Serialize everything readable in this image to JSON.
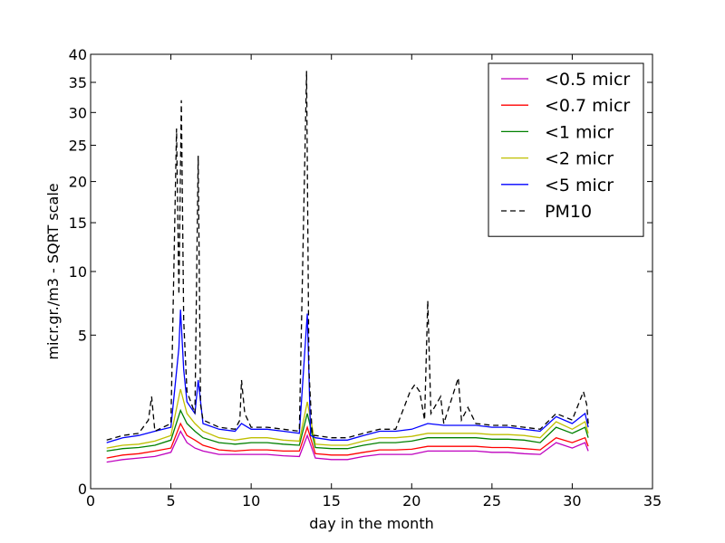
{
  "chart_data": {
    "type": "line",
    "xlabel": "day in the month",
    "ylabel": "micr.gr./m3 - SQRT scale",
    "scale_y": "sqrt",
    "xlim": [
      0,
      35
    ],
    "ylim": [
      0,
      40
    ],
    "x_ticks": [
      0,
      5,
      10,
      15,
      20,
      25,
      30,
      35
    ],
    "y_ticks": [
      0,
      5,
      10,
      15,
      20,
      25,
      30,
      35,
      40
    ],
    "legend_position": "top-right",
    "series": [
      {
        "name": "<0.5 micr",
        "color": "#bf00bf",
        "dash": false,
        "points": [
          [
            1,
            0.15
          ],
          [
            2,
            0.18
          ],
          [
            3,
            0.2
          ],
          [
            4,
            0.22
          ],
          [
            5,
            0.28
          ],
          [
            5.6,
            0.7
          ],
          [
            6,
            0.45
          ],
          [
            6.5,
            0.35
          ],
          [
            7,
            0.3
          ],
          [
            8,
            0.25
          ],
          [
            9,
            0.25
          ],
          [
            10,
            0.25
          ],
          [
            11,
            0.25
          ],
          [
            12,
            0.23
          ],
          [
            13,
            0.22
          ],
          [
            13.5,
            0.6
          ],
          [
            14,
            0.2
          ],
          [
            15,
            0.18
          ],
          [
            16,
            0.18
          ],
          [
            17,
            0.22
          ],
          [
            18,
            0.25
          ],
          [
            19,
            0.25
          ],
          [
            20,
            0.25
          ],
          [
            21,
            0.3
          ],
          [
            22,
            0.3
          ],
          [
            23,
            0.3
          ],
          [
            24,
            0.3
          ],
          [
            25,
            0.28
          ],
          [
            26,
            0.28
          ],
          [
            27,
            0.26
          ],
          [
            28,
            0.25
          ],
          [
            29,
            0.45
          ],
          [
            30,
            0.35
          ],
          [
            30.8,
            0.45
          ],
          [
            31,
            0.3
          ]
        ]
      },
      {
        "name": "<0.7 micr",
        "color": "#ff0000",
        "dash": false,
        "points": [
          [
            1,
            0.2
          ],
          [
            2,
            0.24
          ],
          [
            3,
            0.26
          ],
          [
            4,
            0.3
          ],
          [
            5,
            0.35
          ],
          [
            5.6,
            0.9
          ],
          [
            6,
            0.6
          ],
          [
            6.5,
            0.5
          ],
          [
            7,
            0.4
          ],
          [
            8,
            0.32
          ],
          [
            9,
            0.3
          ],
          [
            10,
            0.32
          ],
          [
            11,
            0.32
          ],
          [
            12,
            0.3
          ],
          [
            13,
            0.3
          ],
          [
            13.5,
            0.8
          ],
          [
            14,
            0.26
          ],
          [
            15,
            0.24
          ],
          [
            16,
            0.24
          ],
          [
            17,
            0.28
          ],
          [
            18,
            0.32
          ],
          [
            19,
            0.32
          ],
          [
            20,
            0.33
          ],
          [
            21,
            0.38
          ],
          [
            22,
            0.38
          ],
          [
            23,
            0.38
          ],
          [
            24,
            0.38
          ],
          [
            25,
            0.36
          ],
          [
            26,
            0.36
          ],
          [
            27,
            0.34
          ],
          [
            28,
            0.32
          ],
          [
            29,
            0.55
          ],
          [
            30,
            0.45
          ],
          [
            30.8,
            0.55
          ],
          [
            31,
            0.38
          ]
        ]
      },
      {
        "name": "<1 micr",
        "color": "#008000",
        "dash": false,
        "points": [
          [
            1,
            0.3
          ],
          [
            2,
            0.34
          ],
          [
            3,
            0.36
          ],
          [
            4,
            0.4
          ],
          [
            5,
            0.5
          ],
          [
            5.6,
            1.3
          ],
          [
            6,
            0.9
          ],
          [
            6.5,
            0.7
          ],
          [
            7,
            0.55
          ],
          [
            8,
            0.45
          ],
          [
            9,
            0.42
          ],
          [
            10,
            0.45
          ],
          [
            11,
            0.45
          ],
          [
            12,
            0.42
          ],
          [
            13,
            0.4
          ],
          [
            13.5,
            1.2
          ],
          [
            14,
            0.36
          ],
          [
            15,
            0.34
          ],
          [
            16,
            0.34
          ],
          [
            17,
            0.4
          ],
          [
            18,
            0.45
          ],
          [
            19,
            0.45
          ],
          [
            20,
            0.48
          ],
          [
            21,
            0.55
          ],
          [
            22,
            0.55
          ],
          [
            23,
            0.55
          ],
          [
            24,
            0.55
          ],
          [
            25,
            0.52
          ],
          [
            26,
            0.52
          ],
          [
            27,
            0.5
          ],
          [
            28,
            0.45
          ],
          [
            29,
            0.8
          ],
          [
            30,
            0.65
          ],
          [
            30.8,
            0.8
          ],
          [
            31,
            0.55
          ]
        ]
      },
      {
        "name": "<2 micr",
        "color": "#bfbf00",
        "dash": false,
        "points": [
          [
            1,
            0.35
          ],
          [
            2,
            0.4
          ],
          [
            3,
            0.42
          ],
          [
            4,
            0.48
          ],
          [
            5,
            0.6
          ],
          [
            5.6,
            2.1
          ],
          [
            6,
            1.2
          ],
          [
            6.5,
            0.9
          ],
          [
            7,
            0.7
          ],
          [
            8,
            0.55
          ],
          [
            9,
            0.5
          ],
          [
            10,
            0.55
          ],
          [
            11,
            0.55
          ],
          [
            12,
            0.5
          ],
          [
            13,
            0.48
          ],
          [
            13.5,
            1.6
          ],
          [
            14,
            0.42
          ],
          [
            15,
            0.4
          ],
          [
            16,
            0.4
          ],
          [
            17,
            0.48
          ],
          [
            18,
            0.55
          ],
          [
            19,
            0.55
          ],
          [
            20,
            0.58
          ],
          [
            21,
            0.65
          ],
          [
            22,
            0.65
          ],
          [
            23,
            0.65
          ],
          [
            24,
            0.65
          ],
          [
            25,
            0.62
          ],
          [
            26,
            0.62
          ],
          [
            27,
            0.6
          ],
          [
            28,
            0.55
          ],
          [
            29,
            0.95
          ],
          [
            30,
            0.75
          ],
          [
            30.8,
            0.95
          ],
          [
            31,
            0.65
          ]
        ]
      },
      {
        "name": "<5 micr",
        "color": "#0000ff",
        "dash": false,
        "points": [
          [
            1,
            0.45
          ],
          [
            2,
            0.55
          ],
          [
            3,
            0.6
          ],
          [
            4,
            0.7
          ],
          [
            5,
            0.8
          ],
          [
            5.5,
            4.2
          ],
          [
            5.6,
            6.8
          ],
          [
            5.8,
            3
          ],
          [
            6,
            1.6
          ],
          [
            6.5,
            1.2
          ],
          [
            6.7,
            2.5
          ],
          [
            7,
            0.9
          ],
          [
            8,
            0.75
          ],
          [
            9,
            0.7
          ],
          [
            9.4,
            0.9
          ],
          [
            10,
            0.75
          ],
          [
            11,
            0.75
          ],
          [
            12,
            0.7
          ],
          [
            13,
            0.65
          ],
          [
            13.5,
            6.5
          ],
          [
            13.7,
            0.6
          ],
          [
            14,
            0.55
          ],
          [
            15,
            0.5
          ],
          [
            16,
            0.5
          ],
          [
            17,
            0.6
          ],
          [
            18,
            0.7
          ],
          [
            19,
            0.7
          ],
          [
            20,
            0.75
          ],
          [
            21,
            0.9
          ],
          [
            22,
            0.85
          ],
          [
            23,
            0.85
          ],
          [
            24,
            0.85
          ],
          [
            25,
            0.8
          ],
          [
            26,
            0.8
          ],
          [
            27,
            0.75
          ],
          [
            28,
            0.7
          ],
          [
            29,
            1.1
          ],
          [
            30,
            0.9
          ],
          [
            30.8,
            1.2
          ],
          [
            31,
            0.8
          ]
        ]
      },
      {
        "name": "PM10",
        "color": "#000000",
        "dash": true,
        "points": [
          [
            1,
            0.5
          ],
          [
            2,
            0.6
          ],
          [
            3,
            0.65
          ],
          [
            3.6,
            1.0
          ],
          [
            3.8,
            1.8
          ],
          [
            4,
            0.7
          ],
          [
            5,
            0.9
          ],
          [
            5.35,
            27.5
          ],
          [
            5.5,
            8
          ],
          [
            5.65,
            32
          ],
          [
            5.8,
            6
          ],
          [
            6.0,
            2
          ],
          [
            6.3,
            1.5
          ],
          [
            6.5,
            1.2
          ],
          [
            6.6,
            9
          ],
          [
            6.7,
            23.5
          ],
          [
            6.85,
            1.5
          ],
          [
            7,
            1.0
          ],
          [
            8,
            0.8
          ],
          [
            9,
            0.75
          ],
          [
            9.3,
            1.0
          ],
          [
            9.4,
            2.5
          ],
          [
            9.6,
            1.2
          ],
          [
            10,
            0.8
          ],
          [
            11,
            0.8
          ],
          [
            12,
            0.75
          ],
          [
            13,
            0.7
          ],
          [
            13.45,
            37
          ],
          [
            13.6,
            3
          ],
          [
            13.8,
            0.6
          ],
          [
            14,
            0.6
          ],
          [
            15,
            0.55
          ],
          [
            16,
            0.55
          ],
          [
            17,
            0.65
          ],
          [
            18,
            0.75
          ],
          [
            19,
            0.75
          ],
          [
            19.9,
            2.0
          ],
          [
            20.2,
            2.3
          ],
          [
            20.5,
            2.0
          ],
          [
            20.8,
            1.0
          ],
          [
            21.0,
            7.5
          ],
          [
            21.2,
            1.2
          ],
          [
            21.8,
            1.8
          ],
          [
            22,
            0.9
          ],
          [
            22.9,
            2.6
          ],
          [
            23.1,
            1.0
          ],
          [
            23.5,
            1.4
          ],
          [
            24,
            0.9
          ],
          [
            25,
            0.85
          ],
          [
            26,
            0.85
          ],
          [
            27,
            0.8
          ],
          [
            28,
            0.75
          ],
          [
            29,
            1.2
          ],
          [
            30,
            1.0
          ],
          [
            30.7,
            2.0
          ],
          [
            30.9,
            1.5
          ],
          [
            31,
            0.9
          ]
        ]
      }
    ]
  }
}
